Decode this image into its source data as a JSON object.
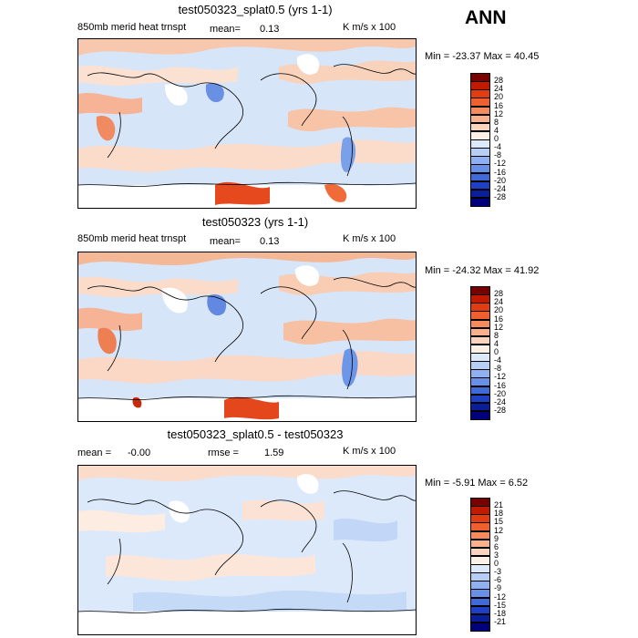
{
  "season": "ANN",
  "panels": [
    {
      "title": "test050323_splat0.5 (yrs 1-1)",
      "field_label": "850mb merid heat trnspt",
      "stat_label": "mean=",
      "stat_value": "0.13",
      "rmse_label": "",
      "rmse_value": "",
      "units": "K m/s x 100",
      "range_text": "Min = -23.37 Max =  40.45",
      "colorbar": {
        "levels": [
          "28",
          "24",
          "20",
          "16",
          "12",
          "8",
          "4",
          "0",
          "-4",
          "-8",
          "-12",
          "-16",
          "-20",
          "-24",
          "-28"
        ],
        "colors": [
          "#7a0000",
          "#c01a00",
          "#e23c10",
          "#f0602e",
          "#f58a5c",
          "#f9b08c",
          "#fcd3bd",
          "#fdf0e6",
          "#dce9fb",
          "#b7cff6",
          "#8fb1ef",
          "#6890e6",
          "#4069da",
          "#1e40c4",
          "#0a1e9a",
          "#00007a"
        ]
      }
    },
    {
      "title": "test050323 (yrs 1-1)",
      "field_label": "850mb merid heat trnspt",
      "stat_label": "mean=",
      "stat_value": "0.13",
      "rmse_label": "",
      "rmse_value": "",
      "units": "K m/s x 100",
      "range_text": "Min = -24.32 Max =  41.92",
      "colorbar": {
        "levels": [
          "28",
          "24",
          "20",
          "16",
          "12",
          "8",
          "4",
          "0",
          "-4",
          "-8",
          "-12",
          "-16",
          "-20",
          "-24",
          "-28"
        ],
        "colors": [
          "#7a0000",
          "#c01a00",
          "#e23c10",
          "#f0602e",
          "#f58a5c",
          "#f9b08c",
          "#fcd3bd",
          "#fdf0e6",
          "#dce9fb",
          "#b7cff6",
          "#8fb1ef",
          "#6890e6",
          "#4069da",
          "#1e40c4",
          "#0a1e9a",
          "#00007a"
        ]
      }
    },
    {
      "title": "test050323_splat0.5 - test050323",
      "field_label": "",
      "stat_label": "mean =",
      "stat_value": "-0.00",
      "rmse_label": "rmse =",
      "rmse_value": "1.59",
      "units": "K m/s x 100",
      "range_text": "Min =  -5.91 Max =   6.52",
      "colorbar": {
        "levels": [
          "21",
          "18",
          "15",
          "12",
          "9",
          "6",
          "3",
          "0",
          "-3",
          "-6",
          "-9",
          "-12",
          "-15",
          "-18",
          "-21"
        ],
        "colors": [
          "#7a0000",
          "#c01a00",
          "#e23c10",
          "#f0602e",
          "#f58a5c",
          "#f9b08c",
          "#fcd3bd",
          "#fdf0e6",
          "#dce9fb",
          "#b7cff6",
          "#8fb1ef",
          "#6890e6",
          "#4069da",
          "#1e40c4",
          "#0a1e9a",
          "#00007a"
        ]
      }
    }
  ]
}
